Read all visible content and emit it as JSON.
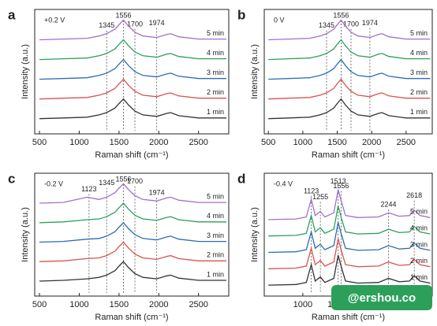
{
  "chart_data": [
    {
      "type": "line",
      "panel": "a",
      "annotation": "+0.2 V",
      "x_label": "Raman shift (cm⁻¹)",
      "y_label": "Intensity (a.u.)",
      "x": [
        500,
        800,
        1100,
        1250,
        1345,
        1450,
        1500,
        1556,
        1620,
        1700,
        1800,
        1974,
        2100,
        2150,
        2250,
        2500,
        2850
      ],
      "xlim": [
        440,
        2880
      ],
      "xticks": [
        500,
        1000,
        1500,
        2000,
        2500
      ],
      "ylim": [
        0,
        8.2
      ],
      "peaks": [
        1345,
        1556,
        1700,
        1974
      ],
      "series": [
        {
          "name": "1 min",
          "color": "#333333",
          "values": [
            1.0,
            1.05,
            1.1,
            1.25,
            1.4,
            1.7,
            2.0,
            2.3,
            1.9,
            1.5,
            1.25,
            1.15,
            1.35,
            1.4,
            1.2,
            1.05,
            1.05
          ]
        },
        {
          "name": "2 min",
          "color": "#d9534f",
          "values": [
            2.3,
            2.35,
            2.4,
            2.55,
            2.7,
            3.0,
            3.3,
            3.6,
            3.2,
            2.8,
            2.55,
            2.45,
            2.65,
            2.7,
            2.5,
            2.35,
            2.35
          ]
        },
        {
          "name": "3 min",
          "color": "#2a6db5",
          "values": [
            3.6,
            3.65,
            3.7,
            3.85,
            4.0,
            4.3,
            4.6,
            4.9,
            4.5,
            4.1,
            3.85,
            3.75,
            3.95,
            4.0,
            3.8,
            3.65,
            3.65
          ]
        },
        {
          "name": "4 min",
          "color": "#2ca05a",
          "values": [
            4.9,
            4.95,
            5.0,
            5.15,
            5.3,
            5.6,
            5.9,
            6.2,
            5.8,
            5.4,
            5.15,
            5.05,
            5.25,
            5.3,
            5.1,
            4.95,
            4.95
          ]
        },
        {
          "name": "5 min",
          "color": "#a070d0",
          "values": [
            6.2,
            6.25,
            6.3,
            6.45,
            6.6,
            6.9,
            7.2,
            7.5,
            7.1,
            6.7,
            6.45,
            6.35,
            6.55,
            6.6,
            6.4,
            6.25,
            6.25
          ]
        }
      ]
    },
    {
      "type": "line",
      "panel": "b",
      "annotation": "0 V",
      "x_label": "Raman shift (cm⁻¹)",
      "y_label": "Intensity (a.u.)",
      "x": [
        500,
        800,
        1100,
        1250,
        1345,
        1450,
        1500,
        1556,
        1620,
        1700,
        1800,
        1974,
        2100,
        2150,
        2250,
        2500,
        2850
      ],
      "xlim": [
        440,
        2880
      ],
      "xticks": [
        500,
        1000,
        1500,
        2000,
        2500
      ],
      "ylim": [
        0,
        8.2
      ],
      "peaks": [
        1345,
        1556,
        1700,
        1974
      ],
      "series": [
        {
          "name": "1 min",
          "color": "#333333",
          "values": [
            1.0,
            1.05,
            1.1,
            1.25,
            1.4,
            1.7,
            2.0,
            2.3,
            1.9,
            1.5,
            1.25,
            1.15,
            1.35,
            1.4,
            1.2,
            1.05,
            1.05
          ]
        },
        {
          "name": "2 min",
          "color": "#d9534f",
          "values": [
            2.3,
            2.35,
            2.4,
            2.55,
            2.7,
            3.0,
            3.3,
            3.6,
            3.2,
            2.8,
            2.55,
            2.45,
            2.65,
            2.7,
            2.5,
            2.35,
            2.35
          ]
        },
        {
          "name": "3 min",
          "color": "#2a6db5",
          "values": [
            3.6,
            3.65,
            3.7,
            3.85,
            4.0,
            4.3,
            4.6,
            4.9,
            4.5,
            4.1,
            3.85,
            3.75,
            3.95,
            4.0,
            3.8,
            3.65,
            3.65
          ]
        },
        {
          "name": "4 min",
          "color": "#2ca05a",
          "values": [
            4.9,
            4.95,
            5.0,
            5.15,
            5.3,
            5.6,
            5.9,
            6.2,
            5.8,
            5.4,
            5.15,
            5.05,
            5.25,
            5.3,
            5.1,
            4.95,
            4.95
          ]
        },
        {
          "name": "5 min",
          "color": "#a070d0",
          "values": [
            6.2,
            6.25,
            6.3,
            6.45,
            6.6,
            6.9,
            7.2,
            7.5,
            7.1,
            6.7,
            6.45,
            6.35,
            6.55,
            6.6,
            6.4,
            6.25,
            6.25
          ]
        }
      ]
    },
    {
      "type": "line",
      "panel": "c",
      "annotation": "-0.2 V",
      "x_label": "Raman shift (cm⁻¹)",
      "y_label": "Intensity (a.u.)",
      "x": [
        500,
        800,
        1100,
        1250,
        1345,
        1450,
        1500,
        1556,
        1620,
        1700,
        1800,
        1974,
        2100,
        2150,
        2250,
        2500,
        2850
      ],
      "xlim": [
        440,
        2880
      ],
      "xticks": [
        500,
        1000,
        1500,
        2000,
        2500
      ],
      "ylim": [
        0,
        8.2
      ],
      "peaks": [
        1123,
        1345,
        1556,
        1700,
        1974
      ],
      "series": [
        {
          "name": "1 min",
          "color": "#333333",
          "values": [
            1.0,
            1.05,
            1.15,
            1.25,
            1.4,
            1.7,
            2.0,
            2.3,
            1.9,
            1.5,
            1.25,
            1.15,
            1.35,
            1.4,
            1.2,
            1.05,
            1.05
          ]
        },
        {
          "name": "2 min",
          "color": "#d9534f",
          "values": [
            2.3,
            2.35,
            2.5,
            2.55,
            2.7,
            3.0,
            3.3,
            3.6,
            3.2,
            2.8,
            2.55,
            2.45,
            2.65,
            2.7,
            2.5,
            2.35,
            2.35
          ]
        },
        {
          "name": "3 min",
          "color": "#2a6db5",
          "values": [
            3.6,
            3.65,
            3.8,
            3.85,
            4.0,
            4.3,
            4.6,
            4.9,
            4.5,
            4.1,
            3.85,
            3.75,
            3.95,
            4.0,
            3.8,
            3.65,
            3.65
          ]
        },
        {
          "name": "4 min",
          "color": "#2ca05a",
          "values": [
            4.9,
            4.95,
            5.1,
            5.15,
            5.3,
            5.6,
            5.9,
            6.2,
            5.8,
            5.4,
            5.15,
            5.05,
            5.25,
            5.3,
            5.1,
            4.95,
            4.95
          ]
        },
        {
          "name": "5 min",
          "color": "#a070d0",
          "values": [
            6.2,
            6.25,
            6.6,
            6.45,
            6.6,
            6.9,
            7.2,
            7.5,
            7.1,
            6.7,
            6.45,
            6.35,
            6.55,
            6.6,
            6.4,
            6.25,
            6.25
          ]
        }
      ]
    },
    {
      "type": "line",
      "panel": "d",
      "annotation": "-0.4 V",
      "x_label": "Raman shift (cm⁻¹)",
      "y_label": "Intensity (a.u.)",
      "x": [
        500,
        900,
        1050,
        1123,
        1180,
        1255,
        1320,
        1450,
        1513,
        1556,
        1620,
        1800,
        2100,
        2244,
        2400,
        2550,
        2618,
        2700,
        2850
      ],
      "xlim": [
        440,
        2880
      ],
      "xticks": [
        1000,
        1500
      ],
      "ylim": [
        0,
        9
      ],
      "peaks": [
        1123,
        1255,
        1513,
        1556,
        2244,
        2618
      ],
      "series": [
        {
          "name": "1 min",
          "color": "#333333",
          "values": [
            0.8,
            0.85,
            1.0,
            2.3,
            1.1,
            1.4,
            1.0,
            1.3,
            3.0,
            2.2,
            1.1,
            0.95,
            1.0,
            1.3,
            1.05,
            1.1,
            1.5,
            1.1,
            0.95
          ]
        },
        {
          "name": "2 min",
          "color": "#d9534f",
          "values": [
            2.0,
            2.05,
            2.2,
            3.5,
            2.3,
            2.6,
            2.2,
            2.5,
            4.2,
            3.4,
            2.3,
            2.15,
            2.2,
            2.5,
            2.25,
            2.3,
            2.7,
            2.3,
            2.15
          ]
        },
        {
          "name": "3 min",
          "color": "#2a6db5",
          "values": [
            3.2,
            3.25,
            3.4,
            4.7,
            3.5,
            3.8,
            3.4,
            3.7,
            5.4,
            4.6,
            3.5,
            3.35,
            3.4,
            3.7,
            3.45,
            3.5,
            3.9,
            3.5,
            3.35
          ]
        },
        {
          "name": "4 min",
          "color": "#2ca05a",
          "values": [
            4.4,
            4.45,
            4.6,
            5.9,
            4.7,
            5.0,
            4.6,
            4.9,
            6.6,
            5.8,
            4.7,
            4.55,
            4.6,
            4.9,
            4.65,
            4.7,
            5.1,
            4.7,
            4.55
          ]
        },
        {
          "name": "5 min",
          "color": "#a070d0",
          "values": [
            5.6,
            5.65,
            5.8,
            7.1,
            5.9,
            6.2,
            5.8,
            6.1,
            7.8,
            7.0,
            5.9,
            5.75,
            5.8,
            6.1,
            5.85,
            5.9,
            6.3,
            5.9,
            5.75
          ]
        }
      ]
    }
  ],
  "watermark": "@ershou.co"
}
